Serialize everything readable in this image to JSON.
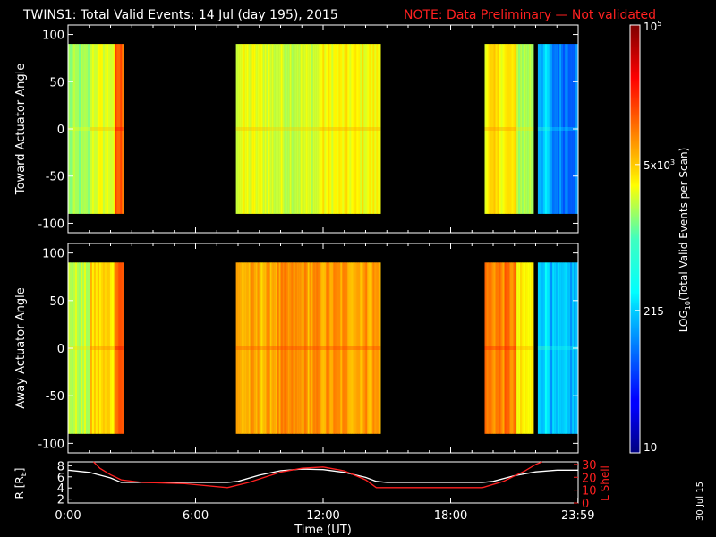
{
  "window": {
    "title": "TWINS1: Total Valid Events: 14 Jul (day 195), 2015",
    "note": "NOTE: Data Preliminary — Not validated",
    "stamp": "30 Jul 15"
  },
  "colors": {
    "background": "#000000",
    "axes": "#ffffff",
    "note": "#ff2020",
    "r_line": "#ffffff",
    "lshell_line": "#ff2020",
    "colormap": "jet"
  },
  "chart_data": [
    {
      "type": "heatmap",
      "title": "TWINS1: Total Valid Events: 14 Jul (day 195), 2015",
      "ylabel": "Toward Actuator Angle",
      "xlim": [
        0,
        24
      ],
      "ylim": [
        -110,
        110
      ],
      "yticks": [
        "100",
        "50",
        "0",
        "-50",
        "-100"
      ],
      "y_range_data": [
        -90,
        90
      ],
      "colorbar_level_scale": "0 = 10 events, 1 = 10^5 events (log)",
      "intervals": [
        {
          "start": 0.0,
          "end": 1.05,
          "level": 0.52
        },
        {
          "start": 1.05,
          "end": 2.2,
          "level": 0.6
        },
        {
          "start": 2.2,
          "end": 2.6,
          "level": 0.78
        },
        {
          "start": 7.9,
          "end": 9.5,
          "level": 0.6
        },
        {
          "start": 9.5,
          "end": 11.8,
          "level": 0.58
        },
        {
          "start": 11.8,
          "end": 14.7,
          "level": 0.62
        },
        {
          "start": 19.6,
          "end": 21.1,
          "level": 0.64
        },
        {
          "start": 21.1,
          "end": 21.9,
          "level": 0.55
        },
        {
          "start": 22.1,
          "end": 22.7,
          "level": 0.32
        },
        {
          "start": 22.7,
          "end": 23.99,
          "level": 0.25
        }
      ]
    },
    {
      "type": "heatmap",
      "ylabel": "Away Actuator Angle",
      "xlim": [
        0,
        24
      ],
      "ylim": [
        -110,
        110
      ],
      "yticks": [
        "100",
        "50",
        "0",
        "-50",
        "-100"
      ],
      "y_range_data": [
        -90,
        90
      ],
      "colorbar_level_scale": "0 = 10 events, 1 = 10^5 events (log)",
      "intervals": [
        {
          "start": 0.0,
          "end": 1.05,
          "level": 0.56
        },
        {
          "start": 1.05,
          "end": 2.2,
          "level": 0.66
        },
        {
          "start": 2.2,
          "end": 2.6,
          "level": 0.8
        },
        {
          "start": 7.9,
          "end": 9.5,
          "level": 0.7
        },
        {
          "start": 9.5,
          "end": 11.8,
          "level": 0.72
        },
        {
          "start": 11.8,
          "end": 14.7,
          "level": 0.72
        },
        {
          "start": 19.6,
          "end": 21.1,
          "level": 0.75
        },
        {
          "start": 21.1,
          "end": 21.9,
          "level": 0.62
        },
        {
          "start": 22.1,
          "end": 22.7,
          "level": 0.35
        },
        {
          "start": 22.7,
          "end": 23.99,
          "level": 0.3
        }
      ]
    },
    {
      "type": "line",
      "xlabel": "Time (UT)",
      "xlim": [
        0,
        24
      ],
      "xticks": [
        "0:00",
        "6:00",
        "12:00",
        "18:00",
        "23:59"
      ],
      "ylabel_left": "R [R",
      "ylabel_left_sub": "E",
      "ylabel_left_close": "]",
      "yticks_left": [
        "8",
        "6",
        "4",
        "2"
      ],
      "ylim_left": [
        1.3,
        8.7
      ],
      "ylabel_right": "L Shell",
      "yticks_right": [
        "30",
        "20",
        "10",
        "0"
      ],
      "ylim_right": [
        0,
        32
      ],
      "series": [
        {
          "color": "#ffffff",
          "axis": "left",
          "points": [
            [
              0.0,
              7.2
            ],
            [
              1.0,
              6.8
            ],
            [
              2.0,
              5.8
            ],
            [
              2.5,
              5.0
            ],
            [
              3.5,
              5.0
            ],
            [
              5.5,
              5.0
            ],
            [
              7.5,
              5.0
            ],
            [
              8.0,
              5.2
            ],
            [
              9.0,
              6.3
            ],
            [
              10.0,
              7.1
            ],
            [
              11.0,
              7.4
            ],
            [
              12.0,
              7.3
            ],
            [
              13.0,
              6.8
            ],
            [
              14.0,
              5.9
            ],
            [
              14.5,
              5.2
            ],
            [
              15.0,
              5.0
            ],
            [
              17.0,
              5.0
            ],
            [
              19.5,
              5.0
            ],
            [
              20.0,
              5.2
            ],
            [
              21.0,
              6.2
            ],
            [
              22.0,
              6.9
            ],
            [
              23.0,
              7.2
            ],
            [
              23.99,
              7.2
            ]
          ]
        },
        {
          "color": "#ff2020",
          "axis": "right",
          "points": [
            [
              1.2,
              32
            ],
            [
              1.5,
              27
            ],
            [
              2.0,
              22
            ],
            [
              2.5,
              18
            ],
            [
              3.5,
              16
            ],
            [
              5.5,
              15
            ],
            [
              7.5,
              12
            ],
            [
              8.5,
              16
            ],
            [
              10.0,
              24
            ],
            [
              11.0,
              27
            ],
            [
              12.0,
              28
            ],
            [
              13.0,
              25
            ],
            [
              14.0,
              18
            ],
            [
              14.5,
              12
            ],
            [
              16.5,
              12
            ],
            [
              18.0,
              12
            ],
            [
              19.5,
              12
            ],
            [
              20.5,
              17
            ],
            [
              21.5,
              25
            ],
            [
              22.0,
              30
            ],
            [
              22.3,
              32
            ]
          ]
        }
      ]
    },
    {
      "type": "heatmap",
      "role": "colorbar",
      "label": "LOG",
      "label_sub": "10",
      "label_rest": "(Total Valid Events per Scan)",
      "ticks": [
        {
          "label": "10",
          "level": 0.0
        },
        {
          "label": "215",
          "level": 0.333
        },
        {
          "label": "5x10",
          "sup": "3",
          "level": 0.674
        },
        {
          "label": "10",
          "sup": "5",
          "level": 1.0
        }
      ]
    }
  ]
}
